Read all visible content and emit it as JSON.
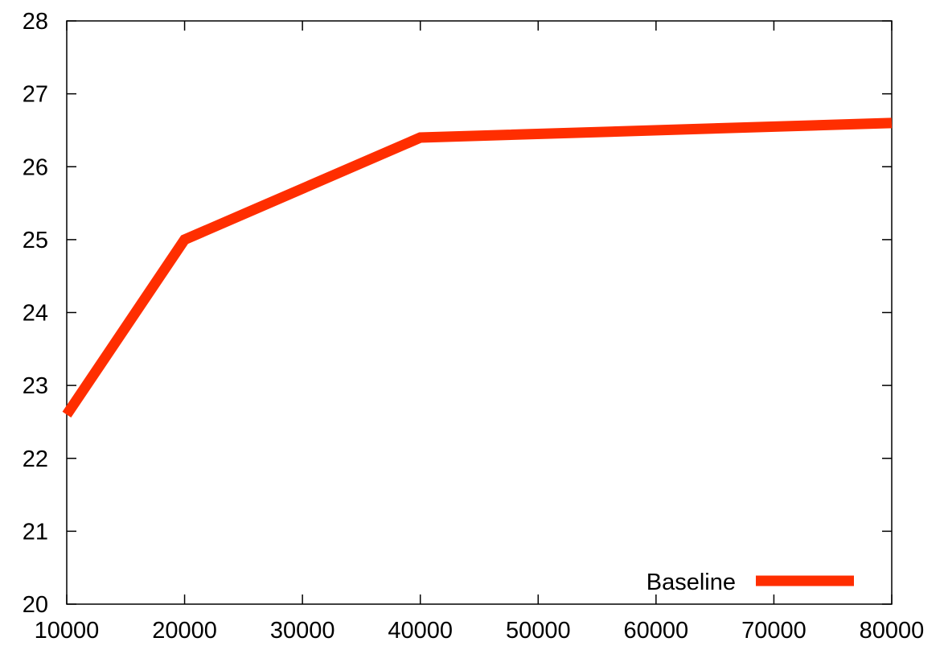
{
  "chart_data": {
    "type": "line",
    "title": "",
    "xlabel": "",
    "ylabel": "",
    "xlim": [
      10000,
      80000
    ],
    "ylim": [
      20,
      28
    ],
    "xticks": [
      10000,
      20000,
      30000,
      40000,
      50000,
      60000,
      70000,
      80000
    ],
    "yticks": [
      20,
      21,
      22,
      23,
      24,
      25,
      26,
      27,
      28
    ],
    "grid": false,
    "legend_position": "bottom-right",
    "series": [
      {
        "name": "Baseline",
        "color": "#ff2e00",
        "x": [
          10000,
          20000,
          40000,
          80000
        ],
        "y": [
          22.6,
          25.0,
          26.4,
          26.6
        ]
      }
    ]
  }
}
